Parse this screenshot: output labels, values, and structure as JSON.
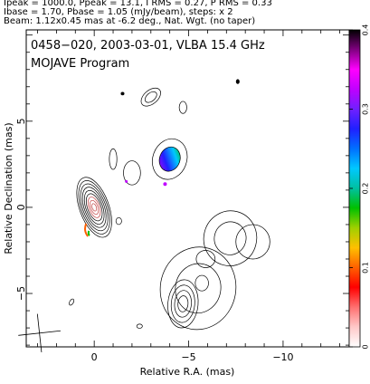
{
  "header": {
    "line1": "Ipeak = 1000.0, Ppeak = 13.1, I RMS = 0.27, P RMS = 0.33",
    "line2": "Ibase = 1.70, Pbase = 1.05 (mJy/beam), steps: x 2",
    "line3": "Beam: 1.12x0.45 mas at -6.2 deg., Nat. Wgt. (no taper)"
  },
  "plot": {
    "title": "0458−020, 2003-03-01, VLBA 15.4 GHz",
    "subtitle": "MOJAVE Program"
  },
  "chart_data": {
    "type": "contour",
    "xlabel": "Relative R.A. (mas)",
    "ylabel": "Relative Declination (mas)",
    "xlim": [
      3.6,
      -13.5
    ],
    "ylim": [
      -8.1,
      10.3
    ],
    "x_ticks": [
      {
        "value": 0,
        "label": "0"
      },
      {
        "value": -5,
        "label": "−5"
      },
      {
        "value": -10,
        "label": "−10"
      }
    ],
    "y_ticks": [
      {
        "value": 5,
        "label": "5"
      },
      {
        "value": 0,
        "label": "0"
      },
      {
        "value": -5,
        "label": "−5"
      }
    ],
    "colorbar": {
      "range": [
        0,
        0.4
      ],
      "ticks": [
        {
          "value": 0,
          "label": "0"
        },
        {
          "value": 0.1,
          "label": "0.1"
        },
        {
          "value": 0.2,
          "label": "0.2"
        },
        {
          "value": 0.3,
          "label": "0.3"
        },
        {
          "value": 0.4,
          "label": "0.4"
        }
      ],
      "colors": [
        "#ffffff",
        "#ffc8c8",
        "#ff7070",
        "#ff0000",
        "#ff6000",
        "#ffc000",
        "#a0d000",
        "#00c000",
        "#00c0a0",
        "#00c8ff",
        "#0070ff",
        "#2020ff",
        "#7020ff",
        "#c000ff",
        "#ff00ff",
        "#800080",
        "#000000"
      ]
    },
    "core": {
      "x": 0.0,
      "y": 0.0,
      "semi_major": 1.8,
      "semi_minor": 0.75,
      "pa_deg": -20,
      "levels": 9
    },
    "components": [
      {
        "x": -4.0,
        "y": 2.8,
        "rx": 0.9,
        "ry": 1.2,
        "rot": 20,
        "fill": true,
        "levels": 2
      },
      {
        "x": -2.0,
        "y": 2.0,
        "rx": 0.45,
        "ry": 0.7,
        "rot": 0,
        "fill": false,
        "levels": 1
      },
      {
        "x": -1.0,
        "y": 2.8,
        "rx": 0.2,
        "ry": 0.6,
        "rot": 0,
        "fill": false,
        "levels": 1
      },
      {
        "x": -3.0,
        "y": 6.4,
        "rx": 0.6,
        "ry": 0.4,
        "rot": -40,
        "fill": false,
        "levels": 2
      },
      {
        "x": -4.7,
        "y": 5.8,
        "rx": 0.2,
        "ry": 0.35,
        "rot": 0,
        "fill": false,
        "levels": 1
      },
      {
        "x": -7.2,
        "y": -1.8,
        "rx": 1.4,
        "ry": 1.6,
        "rot": 15,
        "fill": false,
        "levels": 2
      },
      {
        "x": -8.4,
        "y": -2.0,
        "rx": 0.9,
        "ry": 1.0,
        "rot": 0,
        "fill": false,
        "levels": 1
      },
      {
        "x": -5.5,
        "y": -4.7,
        "rx": 2.0,
        "ry": 2.4,
        "rot": 10,
        "fill": false,
        "levels": 2
      },
      {
        "x": -4.7,
        "y": -5.6,
        "rx": 0.8,
        "ry": 1.4,
        "rot": 5,
        "fill": false,
        "levels": 4
      },
      {
        "x": -5.9,
        "y": -3.0,
        "rx": 0.5,
        "ry": 0.5,
        "rot": 0,
        "fill": false,
        "levels": 1
      },
      {
        "x": -5.7,
        "y": -4.4,
        "rx": 0.35,
        "ry": 0.45,
        "rot": 0,
        "fill": false,
        "levels": 1
      },
      {
        "x": -1.3,
        "y": -0.8,
        "rx": 0.15,
        "ry": 0.2,
        "rot": 0,
        "fill": false,
        "levels": 1
      },
      {
        "x": -2.4,
        "y": -6.9,
        "rx": 0.15,
        "ry": 0.12,
        "rot": 0,
        "fill": false,
        "levels": 1
      },
      {
        "x": -7.6,
        "y": 7.3,
        "rx": 0.08,
        "ry": 0.12,
        "rot": 0,
        "fill": true,
        "levels": 1
      },
      {
        "x": -1.5,
        "y": 6.6,
        "rx": 0.08,
        "ry": 0.08,
        "rot": 0,
        "fill": true,
        "levels": 1
      },
      {
        "x": 1.2,
        "y": -5.5,
        "rx": 0.1,
        "ry": 0.2,
        "rot": 30,
        "fill": false,
        "levels": 1
      }
    ],
    "beam": {
      "x": 2.9,
      "y": -7.3,
      "major": 1.12,
      "minor": 0.45,
      "pa_deg": -6.2
    }
  }
}
